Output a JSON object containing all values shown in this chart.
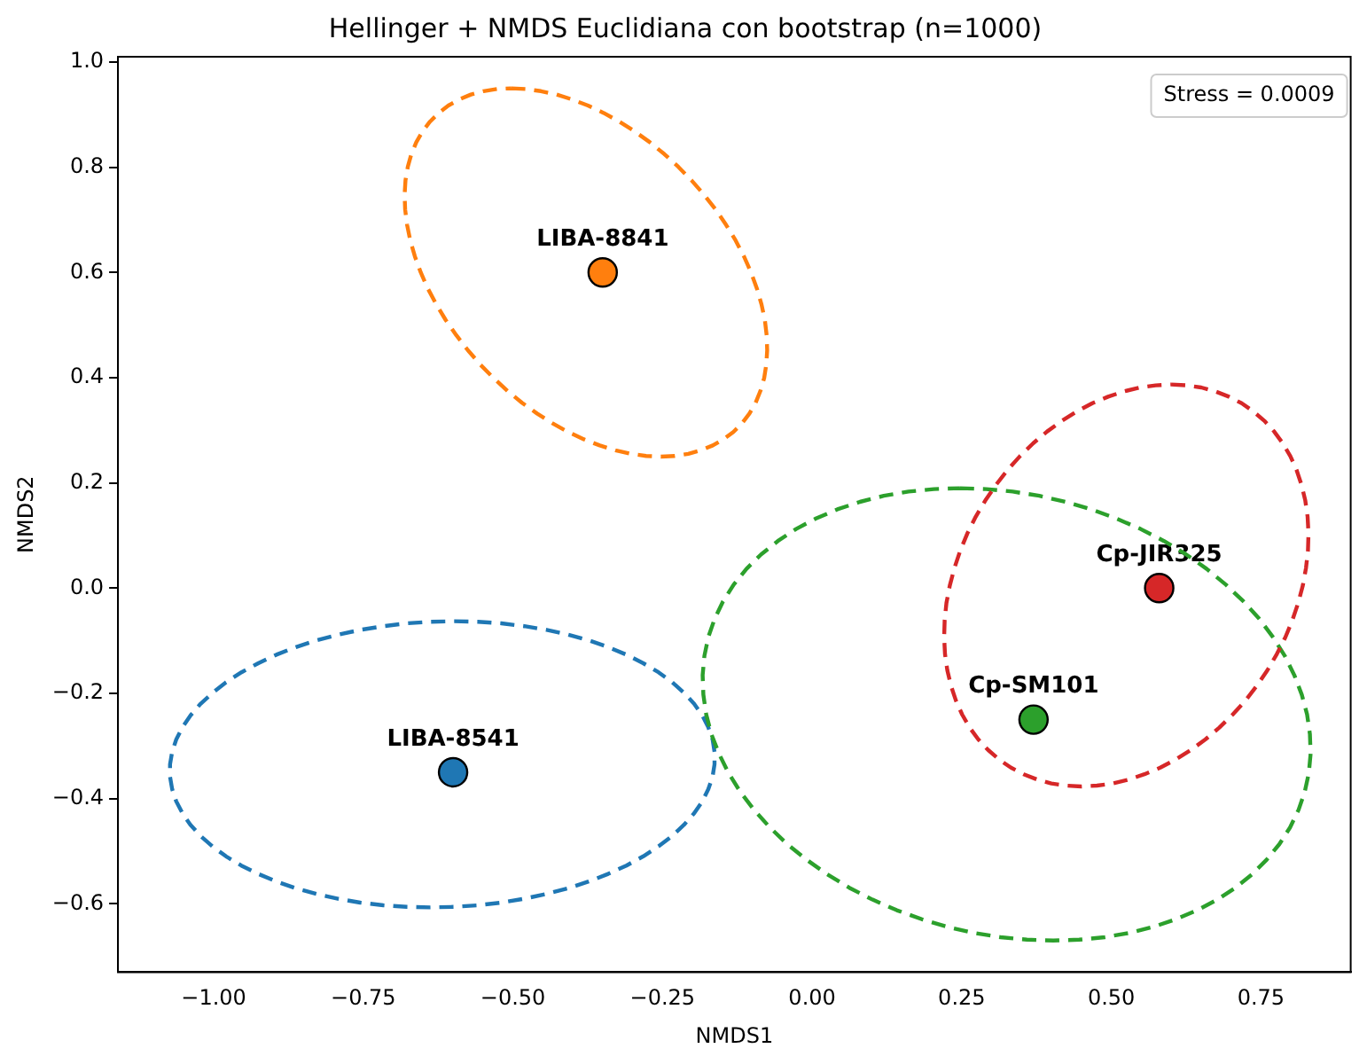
{
  "chart_data": {
    "type": "scatter",
    "title": "Hellinger + NMDS Euclidiana con bootstrap (n=1000)",
    "xlabel": "NMDS1",
    "ylabel": "NMDS2",
    "xlim": [
      -1.16,
      0.9
    ],
    "ylim": [
      -0.73,
      1.01
    ],
    "xticks": [
      {
        "value": -1,
        "label": "−1.00"
      },
      {
        "value": -0.75,
        "label": "−0.75"
      },
      {
        "value": -0.5,
        "label": "−0.50"
      },
      {
        "value": -0.25,
        "label": "−0.25"
      },
      {
        "value": 0,
        "label": "0.00"
      },
      {
        "value": 0.25,
        "label": "0.25"
      },
      {
        "value": 0.5,
        "label": "0.50"
      },
      {
        "value": 0.75,
        "label": "0.75"
      }
    ],
    "yticks": [
      {
        "value": -0.6,
        "label": "−0.6"
      },
      {
        "value": -0.4,
        "label": "−0.4"
      },
      {
        "value": -0.2,
        "label": "−0.2"
      },
      {
        "value": 0,
        "label": "0.0"
      },
      {
        "value": 0.2,
        "label": "0.2"
      },
      {
        "value": 0.4,
        "label": "0.4"
      },
      {
        "value": 0.6,
        "label": "0.6"
      },
      {
        "value": 0.8,
        "label": "0.8"
      },
      {
        "value": 1,
        "label": "1.0"
      }
    ],
    "grid": false,
    "series": [
      {
        "type": "scatter",
        "marker": "circle",
        "x": [
          -0.6,
          -0.35,
          0.37,
          0.58
        ],
        "values": [
          -0.35,
          0.6,
          -0.25,
          0.0
        ],
        "colors": [
          "#1f77b4",
          "#ff7f0e",
          "#2ca02c",
          "#d62728"
        ]
      }
    ],
    "annotations": [
      {
        "text": "LIBA-8541",
        "x": -0.6,
        "y": -0.35
      },
      {
        "text": "LIBA-8841",
        "x": -0.35,
        "y": 0.6
      },
      {
        "text": "Cp-SM101",
        "x": 0.37,
        "y": -0.25
      },
      {
        "text": "Cp-JIR325",
        "x": 0.58,
        "y": 0.0
      },
      "Stress = 0.0009"
    ]
  }
}
